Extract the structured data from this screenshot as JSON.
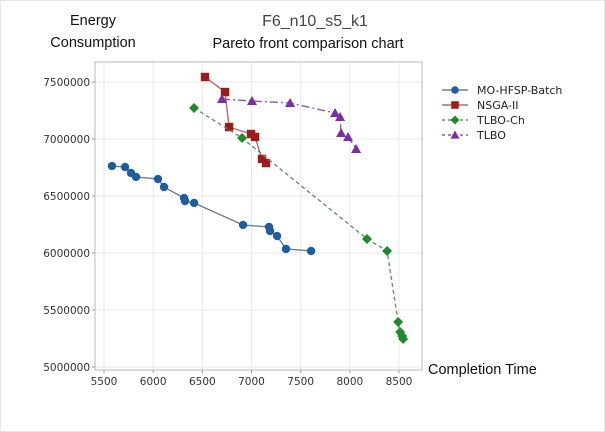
{
  "chart_data": {
    "type": "scatter",
    "title": "F6_n10_s5_k1",
    "subtitle": "Pareto front comparison chart",
    "xlabel": "Completion Time",
    "ylabel": "Energy Consumption",
    "xlim": [
      5400,
      8750
    ],
    "ylim": [
      4980000,
      7680000
    ],
    "xticks": [
      5500,
      6000,
      6500,
      7000,
      7500,
      8000,
      8500
    ],
    "yticks": [
      5000000,
      5500000,
      6000000,
      6500000,
      7000000,
      7500000
    ],
    "grid": true,
    "legend_position": "right",
    "series": [
      {
        "name": "MO-HFSP-Batch",
        "color": "#1f5e9e",
        "marker": "circle",
        "line": "solid",
        "line_color": "#6b7f94",
        "points": [
          [
            5581,
            6763000
          ],
          [
            5714,
            6754000
          ],
          [
            5775,
            6702000
          ],
          [
            5826,
            6667000
          ],
          [
            6049,
            6649000
          ],
          [
            6110,
            6579000
          ],
          [
            6314,
            6482000
          ],
          [
            6324,
            6456000
          ],
          [
            6416,
            6439000
          ],
          [
            6914,
            6246000
          ],
          [
            7178,
            6228000
          ],
          [
            7189,
            6193000
          ],
          [
            7260,
            6149000
          ],
          [
            7351,
            6035000
          ],
          [
            7606,
            6018000
          ]
        ]
      },
      {
        "name": "NSGA-II",
        "color": "#9b1c1c",
        "marker": "square",
        "line": "solid",
        "line_color": "#b46b6b",
        "points": [
          [
            6527,
            7544000
          ],
          [
            6731,
            7412000
          ],
          [
            6772,
            7105000
          ],
          [
            6995,
            7044000
          ],
          [
            7036,
            7018000
          ],
          [
            7107,
            6825000
          ],
          [
            7148,
            6789000
          ]
        ]
      },
      {
        "name": "TLBO-Ch",
        "color": "#1e8a2c",
        "marker": "diamond",
        "line": "dashed",
        "line_color": "#6a8f6e",
        "points": [
          [
            6416,
            7272000
          ],
          [
            6904,
            7009000
          ],
          [
            8175,
            6123000
          ],
          [
            8379,
            6018000
          ],
          [
            8491,
            5395000
          ],
          [
            8511,
            5307000
          ],
          [
            8532,
            5272000
          ],
          [
            8542,
            5246000
          ]
        ]
      },
      {
        "name": "TLBO",
        "color": "#7b2fa6",
        "marker": "triangle",
        "line": "dashdot",
        "line_color": "#8e5aa8",
        "points": [
          [
            6700,
            7351000
          ],
          [
            7005,
            7333000
          ],
          [
            7392,
            7316000
          ],
          [
            7850,
            7228000
          ],
          [
            7901,
            7193000
          ],
          [
            7911,
            7053000
          ],
          [
            7982,
            7018000
          ],
          [
            8064,
            6912000
          ]
        ]
      }
    ]
  }
}
